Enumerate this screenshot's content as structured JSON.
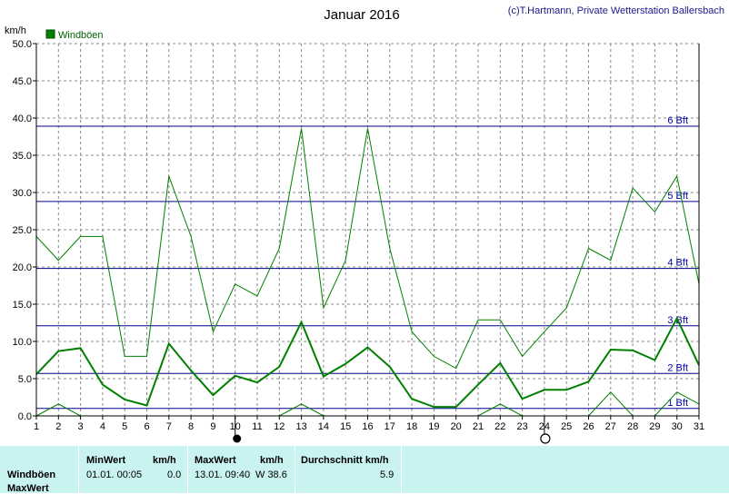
{
  "header": {
    "title": "Januar 2016",
    "copyright": "(c)T.Hartmann, Private Wetterstation Ballersbach"
  },
  "legend": {
    "label": "Windböen"
  },
  "colors": {
    "series": "#008000",
    "bft_lines": "#00008b",
    "table_bg": "#c9f3f0",
    "grid": "#888888"
  },
  "chart_data": {
    "type": "line",
    "title": "Januar 2016",
    "ylabel": "km/h",
    "xlabel": "",
    "ylim": [
      0,
      50
    ],
    "xlim": [
      1,
      31
    ],
    "y_ticks": [
      "0.0",
      "5.0",
      "10.0",
      "15.0",
      "20.0",
      "25.0",
      "30.0",
      "35.0",
      "40.0",
      "45.0",
      "50.0"
    ],
    "x": [
      1,
      2,
      3,
      4,
      5,
      6,
      7,
      8,
      9,
      10,
      11,
      12,
      13,
      14,
      15,
      16,
      17,
      18,
      19,
      20,
      21,
      22,
      23,
      24,
      25,
      26,
      27,
      28,
      29,
      30,
      31
    ],
    "series": [
      {
        "name": "Windböen",
        "style": "max",
        "values": [
          24.1,
          20.9,
          24.1,
          24.1,
          8.0,
          8.0,
          32.2,
          24.1,
          11.3,
          17.7,
          16.1,
          22.5,
          38.6,
          14.5,
          20.9,
          38.6,
          22.5,
          11.3,
          8.0,
          6.4,
          12.9,
          12.9,
          8.0,
          11.3,
          14.5,
          22.5,
          20.9,
          30.6,
          27.4,
          32.2,
          17.7
        ]
      },
      {
        "name": "",
        "style": "avg",
        "values": [
          5.6,
          8.7,
          9.1,
          4.2,
          2.2,
          1.4,
          9.7,
          6.1,
          2.8,
          5.4,
          4.5,
          6.6,
          12.6,
          5.3,
          7.0,
          9.2,
          6.6,
          2.3,
          1.2,
          1.2,
          4.2,
          7.1,
          2.3,
          3.5,
          3.5,
          4.6,
          8.9,
          8.8,
          7.5,
          13.1,
          6.8
        ]
      },
      {
        "name": "",
        "style": "min",
        "values": [
          0.0,
          1.6,
          0.0,
          0.0,
          0.0,
          0.0,
          0.0,
          0.0,
          0.0,
          0.0,
          0.0,
          0.0,
          1.6,
          0.0,
          0.0,
          0.0,
          0.0,
          0.0,
          0.0,
          0.0,
          0.0,
          1.6,
          0.0,
          0.0,
          0.0,
          0.0,
          3.2,
          0.0,
          0.0,
          3.2,
          1.6
        ]
      }
    ],
    "reference_lines": [
      {
        "label": "1 Bft",
        "value": 1.0
      },
      {
        "label": "2 Bft",
        "value": 5.7
      },
      {
        "label": "3 Bft",
        "value": 12.1
      },
      {
        "label": "4 Bft",
        "value": 19.8
      },
      {
        "label": "5 Bft",
        "value": 28.8
      },
      {
        "label": "6 Bft",
        "value": 38.9
      }
    ],
    "moon_markers": [
      {
        "day": 10,
        "phase": "new-moon"
      },
      {
        "day": 24,
        "phase": "full-moon"
      }
    ],
    "grid": true,
    "legend_position": "top-left"
  },
  "table": {
    "headers": {
      "minwert": "MinWert",
      "min_unit": "km/h",
      "maxwert": "MaxWert",
      "max_unit": "km/h",
      "avg": "Durchschnitt km/h"
    },
    "rows": [
      {
        "label": "Windböen",
        "min_time": "01.01.  00:05",
        "min_value": "0.0",
        "max_time": "13.01.  09:40",
        "max_value": "W 38.6",
        "avg_value": "5.9"
      },
      {
        "label": "MaxWert"
      }
    ]
  }
}
